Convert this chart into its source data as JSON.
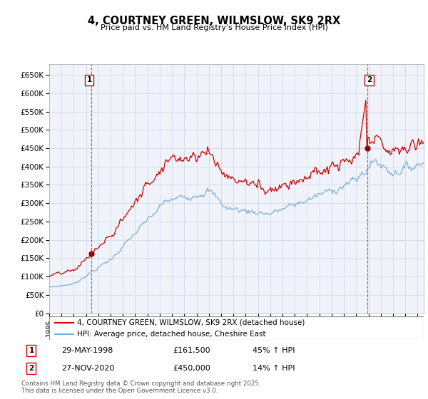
{
  "title": "4, COURTNEY GREEN, WILMSLOW, SK9 2RX",
  "subtitle": "Price paid vs. HM Land Registry's House Price Index (HPI)",
  "legend_line1": "4, COURTNEY GREEN, WILMSLOW, SK9 2RX (detached house)",
  "legend_line2": "HPI: Average price, detached house, Cheshire East",
  "annotation1_label": "1",
  "annotation1_date": "29-MAY-1998",
  "annotation1_price": "£161,500",
  "annotation1_hpi": "45% ↑ HPI",
  "annotation2_label": "2",
  "annotation2_date": "27-NOV-2020",
  "annotation2_price": "£450,000",
  "annotation2_hpi": "14% ↑ HPI",
  "footnote": "Contains HM Land Registry data © Crown copyright and database right 2025.\nThis data is licensed under the Open Government Licence v3.0.",
  "red_color": "#cc0000",
  "blue_color": "#7bafd4",
  "grid_color": "#d0d8e8",
  "background_color": "#f0f4fa",
  "ylim": [
    0,
    680000
  ],
  "yticks": [
    0,
    50000,
    100000,
    150000,
    200000,
    250000,
    300000,
    350000,
    400000,
    450000,
    500000,
    550000,
    600000,
    650000
  ],
  "sale1_year": 1998.41,
  "sale1_price": 161500,
  "sale2_year": 2020.91,
  "sale2_price": 450000,
  "xmin": 1995.0,
  "xmax": 2025.5
}
